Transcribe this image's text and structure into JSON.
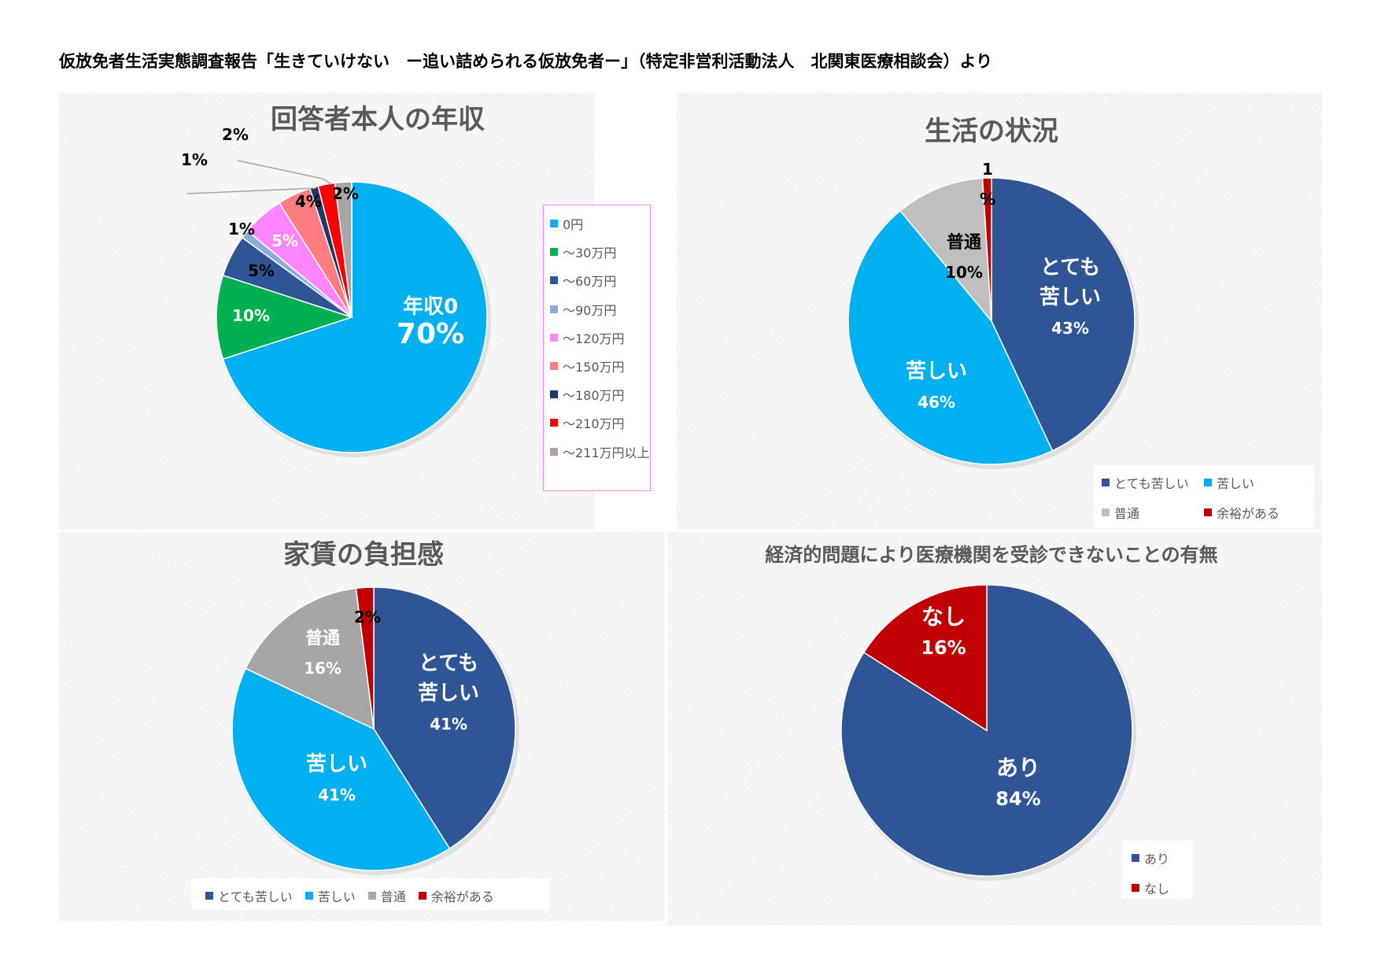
{
  "page_title": "仮放免者生活実態調査報告「生きていけない　ー追い詰められる仮放免者ー」（特定非営利活動法人　北関東医療相談会）より",
  "colors": {
    "dark_blue": "#2f5597",
    "light_blue": "#00b0f0",
    "gray": "#bfbfbf",
    "red": "#c00000"
  },
  "chart_data": [
    {
      "type": "pie",
      "title": "回答者本人の年収",
      "categories": [
        "0円",
        "～30万円",
        "～60万円",
        "～90万円",
        "～120万円",
        "～150万円",
        "～180万円",
        "～210万円",
        "～211万円以上"
      ],
      "values": [
        70,
        10,
        5,
        1,
        5,
        4,
        1,
        2,
        2
      ],
      "data_labels": [
        "年収0\n70%",
        "10%",
        "5%",
        "1%",
        "5%",
        "4%",
        "1%",
        "2%",
        "2%"
      ],
      "colors": [
        "#00b0f0",
        "#00b050",
        "#2f5597",
        "#8eaadb",
        "#ff85ff",
        "#ff7c80",
        "#203864",
        "#ff0000",
        "#a6a6a6"
      ],
      "legend_position": "right"
    },
    {
      "type": "pie",
      "title": "生活の状況",
      "categories": [
        "とても苦しい",
        "苦しい",
        "普通",
        "余裕がある"
      ],
      "values": [
        43,
        46,
        10,
        1
      ],
      "data_labels": [
        "とても\n苦しい\n43%",
        "苦しい\n46%",
        "普通\n10%",
        "1\n%"
      ],
      "colors": [
        "#2f5597",
        "#00b0f0",
        "#bfbfbf",
        "#c00000"
      ],
      "legend_position": "bottom-right"
    },
    {
      "type": "pie",
      "title": "家賃の負担感",
      "categories": [
        "とても苦しい",
        "苦しい",
        "普通",
        "余裕がある"
      ],
      "values": [
        41,
        41,
        16,
        2
      ],
      "data_labels": [
        "とても\n苦しい\n41%",
        "苦しい\n41%",
        "普通\n16%",
        "2%"
      ],
      "colors": [
        "#2f5597",
        "#00b0f0",
        "#a6a6a6",
        "#c00000"
      ],
      "legend_position": "bottom"
    },
    {
      "type": "pie",
      "title": "経済的問題により医療機関を受診できないことの有無",
      "categories": [
        "あり",
        "なし"
      ],
      "values": [
        84,
        16
      ],
      "data_labels": [
        "あり\n84%",
        "なし\n16%"
      ],
      "colors": [
        "#2f5597",
        "#c00000"
      ],
      "legend_position": "bottom-right"
    }
  ]
}
